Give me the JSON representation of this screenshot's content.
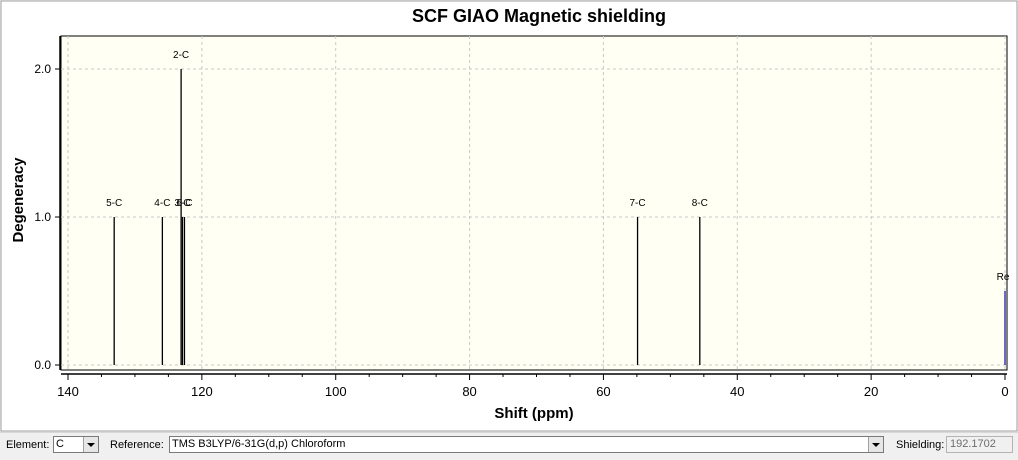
{
  "chart_data": {
    "type": "stem",
    "title": "SCF GIAO Magnetic shielding",
    "xlabel": "Shift (ppm)",
    "ylabel": "Degeneracy",
    "xlim": [
      140,
      0
    ],
    "ylim": [
      0,
      2.2
    ],
    "x_ticks": [
      140,
      120,
      100,
      80,
      60,
      40,
      20,
      0
    ],
    "y_ticks": [
      "0.0",
      "1.0",
      "2.0"
    ],
    "grid": true,
    "peaks": [
      {
        "label": "5-C",
        "x": 133.1,
        "y": 1
      },
      {
        "label": "4-C",
        "x": 125.9,
        "y": 1
      },
      {
        "label": "2-C",
        "x": 123.1,
        "y": 2
      },
      {
        "label": "3-C",
        "x": 122.9,
        "y": 1
      },
      {
        "label": "6-C",
        "x": 122.6,
        "y": 1
      },
      {
        "label": "7-C",
        "x": 54.9,
        "y": 1
      },
      {
        "label": "8-C",
        "x": 45.6,
        "y": 1
      },
      {
        "label": "Re",
        "x": 0,
        "y": 0.5,
        "reference": true
      }
    ],
    "colors": {
      "peak": "#000000",
      "reference": "#1a1aa8",
      "plot_bg": "#fffff4",
      "grid": "#c8c8c8"
    }
  },
  "toolbar": {
    "element_label": "Element:",
    "element_value": "C",
    "reference_label": "Reference:",
    "reference_value": "TMS B3LYP/6-31G(d,p) Chloroform",
    "shielding_label": "Shielding:",
    "shielding_value": "192.1702"
  }
}
